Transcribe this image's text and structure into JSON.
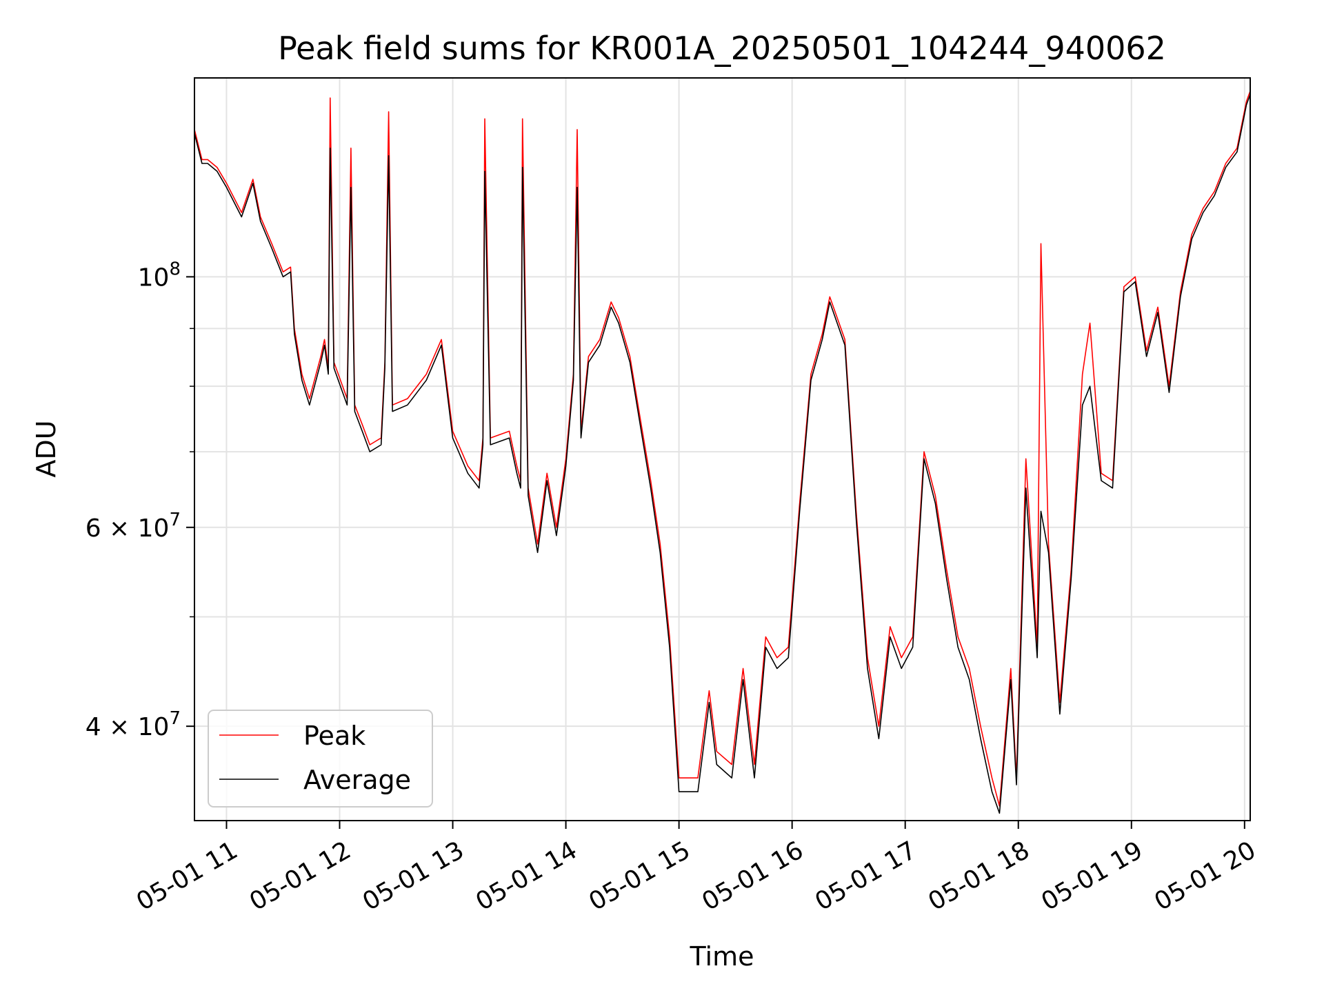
{
  "chart_data": {
    "type": "line",
    "title": "Peak field sums for KR001A_20250501_104244_940062",
    "xlabel": "Time",
    "ylabel": "ADU",
    "yscale": "log",
    "xlim": [
      "05-01 10:43",
      "05-01 20:03"
    ],
    "ylim": [
      33000000,
      150000000
    ],
    "grid": true,
    "legend": "lower-left",
    "x_ticks": [
      "05-01 11",
      "05-01 12",
      "05-01 13",
      "05-01 14",
      "05-01 15",
      "05-01 16",
      "05-01 17",
      "05-01 18",
      "05-01 19",
      "05-01 20"
    ],
    "y_ticks": [
      {
        "value": 100000000,
        "mantissa": "",
        "exponent": "8"
      },
      {
        "value": 60000000,
        "mantissa": "6",
        "exponent": "7"
      },
      {
        "value": 40000000,
        "mantissa": "4",
        "exponent": "7"
      }
    ],
    "y_minor_ticks": [
      50000000,
      70000000,
      80000000,
      90000000
    ],
    "series": [
      {
        "name": "Peak",
        "color": "#ff0000",
        "x": [
          "05-01 10:43",
          "05-01 10:47",
          "05-01 10:50",
          "05-01 10:55",
          "05-01 11:00",
          "05-01 11:08",
          "05-01 11:14",
          "05-01 11:18",
          "05-01 11:24",
          "05-01 11:30",
          "05-01 11:34",
          "05-01 11:36",
          "05-01 11:40",
          "05-01 11:44",
          "05-01 11:50",
          "05-01 11:52",
          "05-01 11:54",
          "05-01 11:55",
          "05-01 11:57",
          "05-01 12:04",
          "05-01 12:06",
          "05-01 12:08",
          "05-01 12:12",
          "05-01 12:16",
          "05-01 12:22",
          "05-01 12:24",
          "05-01 12:26",
          "05-01 12:28",
          "05-01 12:36",
          "05-01 12:46",
          "05-01 12:54",
          "05-01 13:00",
          "05-01 13:08",
          "05-01 13:14",
          "05-01 13:16",
          "05-01 13:17",
          "05-01 13:20",
          "05-01 13:30",
          "05-01 13:34",
          "05-01 13:36",
          "05-01 13:37",
          "05-01 13:40",
          "05-01 13:45",
          "05-01 13:50",
          "05-01 13:55",
          "05-01 14:00",
          "05-01 14:04",
          "05-01 14:06",
          "05-01 14:08",
          "05-01 14:12",
          "05-01 14:18",
          "05-01 14:24",
          "05-01 14:28",
          "05-01 14:34",
          "05-01 14:40",
          "05-01 14:45",
          "05-01 14:50",
          "05-01 14:55",
          "05-01 15:00",
          "05-01 15:10",
          "05-01 15:16",
          "05-01 15:20",
          "05-01 15:28",
          "05-01 15:34",
          "05-01 15:40",
          "05-01 15:46",
          "05-01 15:52",
          "05-01 15:58",
          "05-01 16:04",
          "05-01 16:10",
          "05-01 16:16",
          "05-01 16:20",
          "05-01 16:28",
          "05-01 16:34",
          "05-01 16:40",
          "05-01 16:46",
          "05-01 16:52",
          "05-01 16:58",
          "05-01 17:04",
          "05-01 17:10",
          "05-01 17:16",
          "05-01 17:22",
          "05-01 17:28",
          "05-01 17:34",
          "05-01 17:40",
          "05-01 17:46",
          "05-01 17:50",
          "05-01 17:56",
          "05-01 17:59",
          "05-01 18:04",
          "05-01 18:10",
          "05-01 18:12",
          "05-01 18:16",
          "05-01 18:22",
          "05-01 18:28",
          "05-01 18:34",
          "05-01 18:38",
          "05-01 18:44",
          "05-01 18:50",
          "05-01 18:56",
          "05-01 19:02",
          "05-01 19:08",
          "05-01 19:14",
          "05-01 19:20",
          "05-01 19:26",
          "05-01 19:32",
          "05-01 19:38",
          "05-01 19:44",
          "05-01 19:50",
          "05-01 19:56",
          "05-01 20:01",
          "05-01 20:03"
        ],
        "y": [
          135000000,
          127000000,
          127000000,
          125000000,
          121000000,
          114000000,
          122000000,
          113000000,
          107000000,
          101000000,
          102000000,
          90000000,
          82000000,
          78000000,
          85000000,
          88000000,
          83000000,
          144000000,
          84000000,
          78000000,
          130000000,
          77000000,
          74000000,
          71000000,
          72000000,
          84000000,
          140000000,
          77000000,
          78000000,
          82000000,
          88000000,
          73000000,
          68000000,
          66000000,
          72000000,
          138000000,
          72000000,
          73000000,
          68000000,
          66000000,
          138000000,
          65000000,
          58000000,
          67000000,
          60000000,
          69000000,
          82000000,
          135000000,
          73000000,
          85000000,
          88000000,
          95000000,
          92000000,
          85000000,
          74000000,
          66000000,
          58000000,
          48000000,
          36000000,
          36000000,
          43000000,
          38000000,
          37000000,
          45000000,
          37000000,
          48000000,
          46000000,
          47000000,
          63000000,
          82000000,
          89000000,
          96000000,
          88000000,
          62000000,
          46000000,
          40000000,
          49000000,
          46000000,
          48000000,
          70000000,
          64000000,
          55000000,
          48000000,
          45000000,
          40000000,
          36000000,
          34000000,
          45000000,
          36000000,
          69000000,
          47000000,
          107000000,
          58000000,
          42000000,
          55000000,
          82000000,
          91000000,
          67000000,
          66000000,
          98000000,
          100000000,
          86000000,
          94000000,
          80000000,
          97000000,
          109000000,
          115000000,
          119000000,
          126000000,
          130000000,
          143000000,
          146000000
        ]
      },
      {
        "name": "Average",
        "color": "#000000",
        "x": [
          "05-01 10:43",
          "05-01 10:47",
          "05-01 10:50",
          "05-01 10:55",
          "05-01 11:00",
          "05-01 11:08",
          "05-01 11:14",
          "05-01 11:18",
          "05-01 11:24",
          "05-01 11:30",
          "05-01 11:34",
          "05-01 11:36",
          "05-01 11:40",
          "05-01 11:44",
          "05-01 11:50",
          "05-01 11:52",
          "05-01 11:54",
          "05-01 11:55",
          "05-01 11:57",
          "05-01 12:04",
          "05-01 12:06",
          "05-01 12:08",
          "05-01 12:12",
          "05-01 12:16",
          "05-01 12:22",
          "05-01 12:24",
          "05-01 12:26",
          "05-01 12:28",
          "05-01 12:36",
          "05-01 12:46",
          "05-01 12:54",
          "05-01 13:00",
          "05-01 13:08",
          "05-01 13:14",
          "05-01 13:16",
          "05-01 13:17",
          "05-01 13:20",
          "05-01 13:30",
          "05-01 13:34",
          "05-01 13:36",
          "05-01 13:37",
          "05-01 13:40",
          "05-01 13:45",
          "05-01 13:50",
          "05-01 13:55",
          "05-01 14:00",
          "05-01 14:04",
          "05-01 14:06",
          "05-01 14:08",
          "05-01 14:12",
          "05-01 14:18",
          "05-01 14:24",
          "05-01 14:28",
          "05-01 14:34",
          "05-01 14:40",
          "05-01 14:45",
          "05-01 14:50",
          "05-01 14:55",
          "05-01 15:00",
          "05-01 15:10",
          "05-01 15:16",
          "05-01 15:20",
          "05-01 15:28",
          "05-01 15:34",
          "05-01 15:40",
          "05-01 15:46",
          "05-01 15:52",
          "05-01 15:58",
          "05-01 16:04",
          "05-01 16:10",
          "05-01 16:16",
          "05-01 16:20",
          "05-01 16:28",
          "05-01 16:34",
          "05-01 16:40",
          "05-01 16:46",
          "05-01 16:52",
          "05-01 16:58",
          "05-01 17:04",
          "05-01 17:10",
          "05-01 17:16",
          "05-01 17:22",
          "05-01 17:28",
          "05-01 17:34",
          "05-01 17:40",
          "05-01 17:46",
          "05-01 17:50",
          "05-01 17:56",
          "05-01 17:59",
          "05-01 18:04",
          "05-01 18:10",
          "05-01 18:12",
          "05-01 18:16",
          "05-01 18:22",
          "05-01 18:28",
          "05-01 18:34",
          "05-01 18:38",
          "05-01 18:44",
          "05-01 18:50",
          "05-01 18:56",
          "05-01 19:02",
          "05-01 19:08",
          "05-01 19:14",
          "05-01 19:20",
          "05-01 19:26",
          "05-01 19:32",
          "05-01 19:38",
          "05-01 19:44",
          "05-01 19:50",
          "05-01 19:56",
          "05-01 20:01",
          "05-01 20:03"
        ],
        "y": [
          134000000,
          126000000,
          126000000,
          124000000,
          120000000,
          113000000,
          121000000,
          112000000,
          106000000,
          100000000,
          101000000,
          89000000,
          81000000,
          77000000,
          84000000,
          87000000,
          82000000,
          130000000,
          83000000,
          77000000,
          120000000,
          76000000,
          73000000,
          70000000,
          71000000,
          83000000,
          128000000,
          76000000,
          77000000,
          81000000,
          87000000,
          72000000,
          67000000,
          65000000,
          71000000,
          124000000,
          71000000,
          72000000,
          67000000,
          65000000,
          125000000,
          64000000,
          57000000,
          66000000,
          59000000,
          68000000,
          81000000,
          120000000,
          72000000,
          84000000,
          87000000,
          94000000,
          91000000,
          84000000,
          73000000,
          65000000,
          57000000,
          47000000,
          35000000,
          35000000,
          42000000,
          37000000,
          36000000,
          44000000,
          36000000,
          47000000,
          45000000,
          46000000,
          62000000,
          81000000,
          88000000,
          95000000,
          87000000,
          61000000,
          45000000,
          39000000,
          48000000,
          45000000,
          47000000,
          69000000,
          63000000,
          54000000,
          47000000,
          44000000,
          39000000,
          35000000,
          33500000,
          44000000,
          35500000,
          65000000,
          46000000,
          62000000,
          57000000,
          41000000,
          54000000,
          77000000,
          80000000,
          66000000,
          65000000,
          97000000,
          99000000,
          85000000,
          93000000,
          79000000,
          96000000,
          108000000,
          114000000,
          118000000,
          125000000,
          129000000,
          142000000,
          145000000
        ]
      }
    ]
  }
}
